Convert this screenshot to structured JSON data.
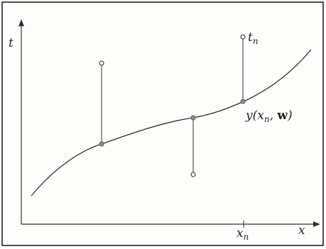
{
  "labels": {
    "y_axis": {
      "main": "t"
    },
    "x_axis": {
      "main": "x"
    },
    "x_tick": {
      "main": "x",
      "sub": "n"
    },
    "target": {
      "main": "t",
      "sub": "n"
    },
    "model": {
      "func": "y(",
      "var": "x",
      "var_sub": "n",
      "sep": ", ",
      "param": "w",
      "close": ")"
    }
  },
  "colors": {
    "line": "#2b2b2b",
    "curve_point": "#8a8a8a",
    "target_point": "#ffffff"
  }
}
